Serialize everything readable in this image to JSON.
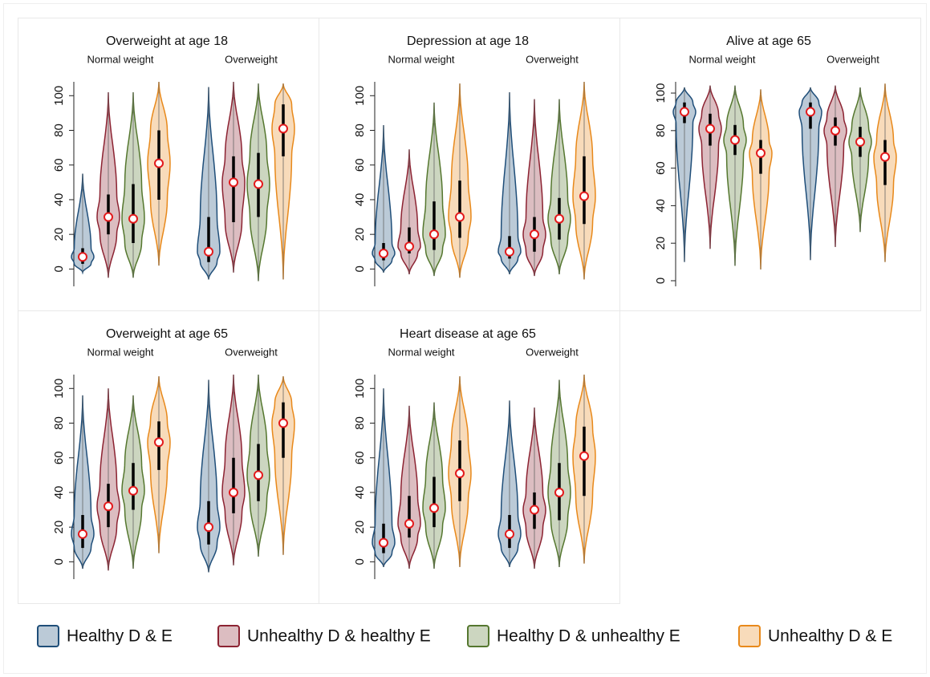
{
  "chart_data": [
    {
      "type": "violin",
      "title": "Overweight at age 18",
      "groups": [
        "Normal weight",
        "Overweight"
      ],
      "ylim": [
        -10,
        108
      ],
      "yticks": [
        0,
        20,
        40,
        60,
        80,
        100
      ],
      "series": [
        {
          "name": "Healthy D & E",
          "color": "#1f4e79",
          "values": [
            7,
            10
          ],
          "q1": [
            3,
            4
          ],
          "q3": [
            12,
            30
          ],
          "min": [
            -2,
            -6
          ],
          "max": [
            55,
            105
          ]
        },
        {
          "name": "Unhealthy D & healthy E",
          "color": "#8c2332",
          "values": [
            30,
            50
          ],
          "q1": [
            20,
            27
          ],
          "q3": [
            43,
            65
          ],
          "min": [
            -5,
            -2
          ],
          "max": [
            102,
            108
          ]
        },
        {
          "name": "Healthy D & unhealthy E",
          "color": "#55772f",
          "values": [
            29,
            49
          ],
          "q1": [
            15,
            30
          ],
          "q3": [
            49,
            67
          ],
          "min": [
            -5,
            -7
          ],
          "max": [
            102,
            107
          ]
        },
        {
          "name": "Unhealthy D & E",
          "color": "#e8891b",
          "values": [
            61,
            81
          ],
          "q1": [
            40,
            65
          ],
          "q3": [
            80,
            95
          ],
          "min": [
            2,
            -6
          ],
          "max": [
            108,
            107
          ]
        }
      ]
    },
    {
      "type": "violin",
      "title": "Depression at age 18",
      "groups": [
        "Normal weight",
        "Overweight"
      ],
      "ylim": [
        -10,
        108
      ],
      "yticks": [
        0,
        20,
        40,
        60,
        80,
        100
      ],
      "series": [
        {
          "name": "Healthy D & E",
          "color": "#1f4e79",
          "values": [
            9,
            10
          ],
          "q1": [
            5,
            6
          ],
          "q3": [
            15,
            19
          ],
          "min": [
            -2,
            -3
          ],
          "max": [
            83,
            102
          ]
        },
        {
          "name": "Unhealthy D & healthy E",
          "color": "#8c2332",
          "values": [
            13,
            20
          ],
          "q1": [
            9,
            10
          ],
          "q3": [
            24,
            30
          ],
          "min": [
            -3,
            -4
          ],
          "max": [
            69,
            98
          ]
        },
        {
          "name": "Healthy D & unhealthy E",
          "color": "#55772f",
          "values": [
            20,
            29
          ],
          "q1": [
            11,
            17
          ],
          "q3": [
            39,
            41
          ],
          "min": [
            -4,
            -3
          ],
          "max": [
            96,
            98
          ]
        },
        {
          "name": "Unhealthy D & E",
          "color": "#e8891b",
          "values": [
            30,
            42
          ],
          "q1": [
            18,
            26
          ],
          "q3": [
            51,
            65
          ],
          "min": [
            -5,
            -6
          ],
          "max": [
            107,
            108
          ]
        }
      ]
    },
    {
      "type": "violin",
      "title": "Alive at age 65",
      "groups": [
        "Normal weight",
        "Overweight"
      ],
      "ylim": [
        -3,
        106
      ],
      "yticks": [
        0,
        20,
        40,
        60,
        80,
        100
      ],
      "series": [
        {
          "name": "Healthy D & E",
          "color": "#1f4e79",
          "values": [
            90,
            90
          ],
          "q1": [
            84,
            81
          ],
          "q3": [
            95,
            95
          ],
          "min": [
            10,
            11
          ],
          "max": [
            103,
            103
          ]
        },
        {
          "name": "Unhealthy D & healthy E",
          "color": "#8c2332",
          "values": [
            81,
            80
          ],
          "q1": [
            72,
            72
          ],
          "q3": [
            89,
            87
          ],
          "min": [
            17,
            18
          ],
          "max": [
            104,
            104
          ]
        },
        {
          "name": "Healthy D & unhealthy E",
          "color": "#55772f",
          "values": [
            75,
            74
          ],
          "q1": [
            67,
            66
          ],
          "q3": [
            83,
            82
          ],
          "min": [
            8,
            26
          ],
          "max": [
            104,
            103
          ]
        },
        {
          "name": "Unhealthy D & E",
          "color": "#e8891b",
          "values": [
            68,
            66
          ],
          "q1": [
            57,
            51
          ],
          "q3": [
            75,
            75
          ],
          "min": [
            6,
            10
          ],
          "max": [
            102,
            105
          ]
        }
      ]
    },
    {
      "type": "violin",
      "title": "Overweight at age 65",
      "groups": [
        "Normal weight",
        "Overweight"
      ],
      "ylim": [
        -10,
        108
      ],
      "yticks": [
        0,
        20,
        40,
        60,
        80,
        100
      ],
      "series": [
        {
          "name": "Healthy D & E",
          "color": "#1f4e79",
          "values": [
            16,
            20
          ],
          "q1": [
            8,
            10
          ],
          "q3": [
            27,
            35
          ],
          "min": [
            -4,
            -6
          ],
          "max": [
            96,
            105
          ]
        },
        {
          "name": "Unhealthy D & healthy E",
          "color": "#8c2332",
          "values": [
            32,
            40
          ],
          "q1": [
            20,
            28
          ],
          "q3": [
            45,
            60
          ],
          "min": [
            -5,
            -2
          ],
          "max": [
            100,
            108
          ]
        },
        {
          "name": "Healthy D & unhealthy E",
          "color": "#55772f",
          "values": [
            41,
            50
          ],
          "q1": [
            30,
            35
          ],
          "q3": [
            57,
            68
          ],
          "min": [
            -4,
            3
          ],
          "max": [
            96,
            108
          ]
        },
        {
          "name": "Unhealthy D & E",
          "color": "#e8891b",
          "values": [
            69,
            80
          ],
          "q1": [
            53,
            60
          ],
          "q3": [
            81,
            92
          ],
          "min": [
            5,
            4
          ],
          "max": [
            107,
            107
          ]
        }
      ]
    },
    {
      "type": "violin",
      "title": "Heart disease at age 65",
      "groups": [
        "Normal weight",
        "Overweight"
      ],
      "ylim": [
        -10,
        108
      ],
      "yticks": [
        0,
        20,
        40,
        60,
        80,
        100
      ],
      "series": [
        {
          "name": "Healthy D & E",
          "color": "#1f4e79",
          "values": [
            11,
            16
          ],
          "q1": [
            5,
            8
          ],
          "q3": [
            22,
            27
          ],
          "min": [
            -3,
            -3
          ],
          "max": [
            100,
            93
          ]
        },
        {
          "name": "Unhealthy D & healthy E",
          "color": "#8c2332",
          "values": [
            22,
            30
          ],
          "q1": [
            14,
            19
          ],
          "q3": [
            38,
            40
          ],
          "min": [
            -4,
            -4
          ],
          "max": [
            90,
            89
          ]
        },
        {
          "name": "Healthy D & unhealthy E",
          "color": "#55772f",
          "values": [
            31,
            40
          ],
          "q1": [
            20,
            24
          ],
          "q3": [
            49,
            57
          ],
          "min": [
            -4,
            -3
          ],
          "max": [
            92,
            105
          ]
        },
        {
          "name": "Unhealthy D & E",
          "color": "#e8891b",
          "values": [
            51,
            61
          ],
          "q1": [
            35,
            38
          ],
          "q3": [
            70,
            78
          ],
          "min": [
            -3,
            -1
          ],
          "max": [
            107,
            108
          ]
        }
      ]
    }
  ]
}
